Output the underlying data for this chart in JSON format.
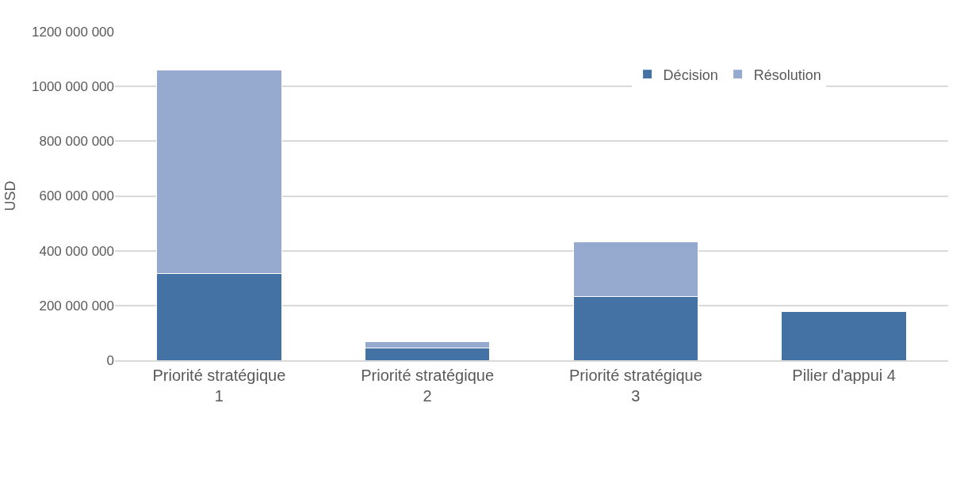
{
  "chart_data": {
    "type": "bar",
    "stacked": true,
    "ylabel": "USD",
    "categories": [
      "Priorité stratégique 1",
      "Priorité stratégique 2",
      "Priorité stratégique 3",
      "Pilier d'appui 4"
    ],
    "series": [
      {
        "name": "Décision",
        "color": "#4472a4",
        "values": [
          317000000,
          44000000,
          232000000,
          177000000
        ]
      },
      {
        "name": "Résolution",
        "color": "#96aad0",
        "values": [
          743000000,
          25000000,
          201000000,
          null
        ]
      }
    ],
    "ylim": [
      0,
      1200000000
    ],
    "yticks": [
      {
        "value": 0,
        "label": "0"
      },
      {
        "value": 200000000,
        "label": "200 000 000"
      },
      {
        "value": 400000000,
        "label": "400 000 000"
      },
      {
        "value": 600000000,
        "label": "600 000 000"
      },
      {
        "value": 800000000,
        "label": "800 000 000"
      },
      {
        "value": 1000000000,
        "label": "1000 000 000"
      },
      {
        "value": 1200000000,
        "label": "1200 000 000"
      }
    ],
    "grid": "y",
    "legend": "top right"
  }
}
